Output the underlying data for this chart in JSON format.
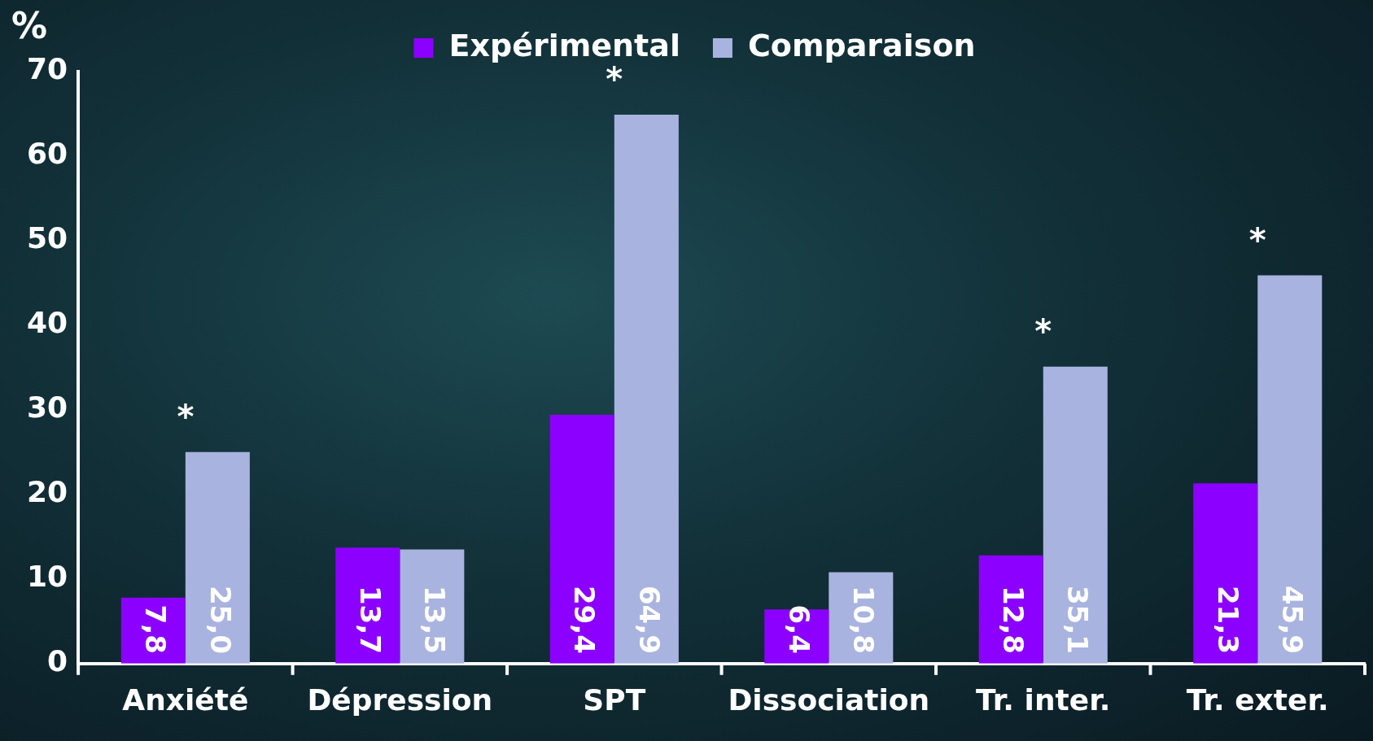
{
  "chart_data": {
    "type": "bar",
    "ylabel": "%",
    "categories": [
      "Anxiété",
      "Dépression",
      "SPT",
      "Dissociation",
      "Tr. inter.",
      "Tr. exter."
    ],
    "series": [
      {
        "name": "Expérimental",
        "color": "#8b00ff",
        "values": [
          7.8,
          13.7,
          29.4,
          6.4,
          12.8,
          21.3
        ],
        "value_labels": [
          "7,8",
          "13,7",
          "29,4",
          "6,4",
          "12,8",
          "21,3"
        ]
      },
      {
        "name": "Comparaison",
        "color": "#a9b3df",
        "values": [
          25.0,
          13.5,
          64.9,
          10.8,
          35.1,
          45.9
        ],
        "value_labels": [
          "25,0",
          "13,5",
          "64,9",
          "10,8",
          "35,1",
          "45,9"
        ]
      }
    ],
    "ylim": [
      0,
      70
    ],
    "yticks": [
      0,
      10,
      20,
      30,
      40,
      50,
      60,
      70
    ],
    "grid": false,
    "legend": "top",
    "annotations": [
      {
        "text": "*",
        "x": "Anxiété",
        "y": 25.0
      },
      {
        "text": "*",
        "x": "SPT",
        "y": 64.9
      },
      {
        "text": "*",
        "x": "Tr. inter.",
        "y": 35.1
      },
      {
        "text": "*",
        "x": "Tr. exter.",
        "y": 45.9
      }
    ]
  }
}
